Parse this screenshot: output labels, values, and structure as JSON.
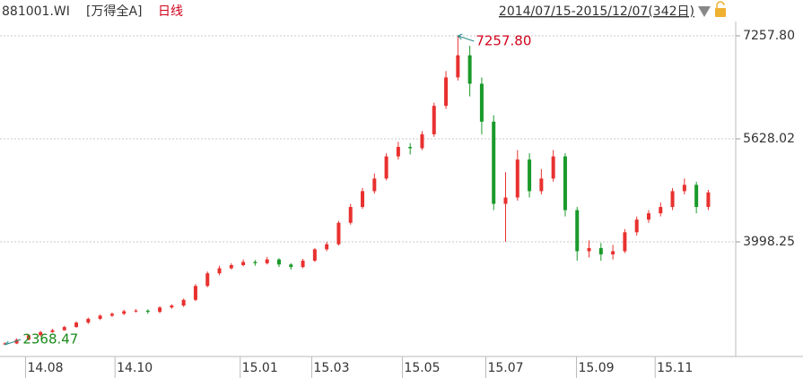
{
  "chart_data": {
    "type": "candlestick",
    "code": "881001.WI",
    "name": "[万得全A]",
    "period": "日线",
    "range": "2014/07/15-2015/12/07(342日)",
    "open": [
      2380,
      2390,
      2450,
      2520,
      2570,
      2600,
      2650,
      2720,
      2780,
      2830,
      2860,
      2900,
      2910,
      2890,
      2960,
      2990,
      3080,
      3300,
      3500,
      3580,
      3630,
      3680,
      3660,
      3720,
      3640,
      3600,
      3700,
      3880,
      3960,
      4300,
      4550,
      4800,
      5000,
      5350,
      5500,
      5480,
      5700,
      6150,
      6600,
      6950,
      6500,
      5900,
      4600,
      4700,
      5300,
      4800,
      5000,
      5350,
      4500,
      3850,
      3900,
      3800,
      3850,
      4150,
      4350,
      4450,
      4550,
      4800,
      4900,
      4550
    ],
    "high": [
      2410,
      2470,
      2540,
      2590,
      2620,
      2670,
      2740,
      2800,
      2850,
      2880,
      2925,
      2935,
      2930,
      2980,
      3010,
      3100,
      3330,
      3530,
      3620,
      3660,
      3720,
      3710,
      3760,
      3740,
      3660,
      3730,
      3900,
      4000,
      4330,
      4600,
      4850,
      5080,
      5400,
      5580,
      5560,
      5750,
      6200,
      6700,
      7257.8,
      7100,
      6600,
      6000,
      5100,
      5450,
      5400,
      5150,
      5450,
      5400,
      4550,
      4020,
      3980,
      3950,
      4200,
      4400,
      4500,
      4620,
      4850,
      5000,
      4950,
      4820
    ],
    "low": [
      2368.47,
      2380,
      2440,
      2500,
      2560,
      2590,
      2640,
      2700,
      2760,
      2810,
      2840,
      2880,
      2860,
      2870,
      2940,
      2970,
      3060,
      3280,
      3470,
      3560,
      3610,
      3620,
      3640,
      3600,
      3560,
      3580,
      3680,
      3850,
      3940,
      4270,
      4520,
      4760,
      4970,
      5300,
      5380,
      5450,
      5660,
      6100,
      6550,
      6300,
      5700,
      4500,
      4000,
      4650,
      4700,
      4750,
      4950,
      4400,
      3700,
      3750,
      3700,
      3720,
      3820,
      4100,
      4300,
      4400,
      4500,
      4750,
      4450,
      4500
    ],
    "close": [
      2390,
      2450,
      2520,
      2570,
      2600,
      2650,
      2720,
      2780,
      2830,
      2860,
      2900,
      2910,
      2890,
      2960,
      2990,
      3080,
      3300,
      3500,
      3580,
      3630,
      3680,
      3660,
      3720,
      3640,
      3600,
      3700,
      3880,
      3960,
      4300,
      4550,
      4800,
      5000,
      5350,
      5500,
      5480,
      5700,
      6150,
      6600,
      6950,
      6500,
      5900,
      4600,
      4700,
      5300,
      4800,
      5000,
      5350,
      4500,
      3850,
      3900,
      3800,
      3850,
      4150,
      4350,
      4450,
      4550,
      4800,
      4900,
      4550,
      4780
    ],
    "up_color": "#e8312f",
    "down_color": "#1a9a2a",
    "ylim": [
      2184,
      7513
    ],
    "yticks": [
      {
        "value": 7257.8,
        "label": "7257.80"
      },
      5628.02,
      3998.25
    ],
    "xlim": [
      -0.4,
      61.3
    ],
    "xticks": [
      {
        "value": 3.4,
        "label": "14.08"
      },
      {
        "value": 10.9,
        "label": "14.10"
      },
      {
        "value": 21.4,
        "label": "15.01"
      },
      {
        "value": 27.4,
        "label": "15.03"
      },
      {
        "value": 35,
        "label": "15.05"
      },
      {
        "value": 42,
        "label": "15.07"
      },
      {
        "value": 49.6,
        "label": "15.09"
      },
      {
        "value": 56.2,
        "label": "15.11"
      }
    ],
    "annotations": [
      {
        "label": "7257.80",
        "value": 7257.8,
        "color": "#d0021b"
      },
      {
        "label": "2368.47",
        "value": 2368.47,
        "color": "#1a8a1a"
      }
    ],
    "grid": true
  }
}
